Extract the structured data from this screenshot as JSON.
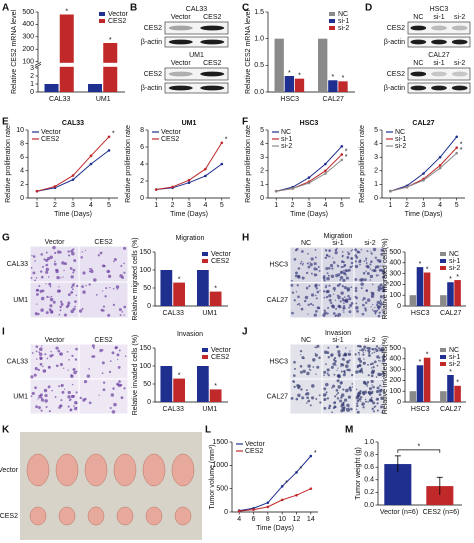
{
  "panel_labels": [
    "A",
    "B",
    "C",
    "D",
    "E",
    "F",
    "G",
    "H",
    "I",
    "J",
    "K",
    "L",
    "M"
  ],
  "blots": {
    "B": [
      {
        "title": "CAL33",
        "lanes": [
          "Vector",
          "CES2"
        ],
        "rows": [
          "CES2",
          "β-actin"
        ]
      },
      {
        "title": "UM1",
        "lanes": [
          "Vector",
          "CES2"
        ],
        "rows": [
          "CES2",
          "β-actin"
        ]
      }
    ],
    "D": [
      {
        "title": "HSC3",
        "lanes": [
          "NC",
          "si-1",
          "si-2"
        ],
        "rows": [
          "CES2",
          "β-actin"
        ]
      },
      {
        "title": "CAL27",
        "lanes": [
          "NC",
          "si-1",
          "si-2"
        ],
        "rows": [
          "CES2",
          "β-actin"
        ]
      }
    ]
  },
  "micrographs": {
    "G": {
      "title": "Migration",
      "columns": [
        "Vector",
        "CES2"
      ],
      "rows": [
        "CAL33",
        "UM1"
      ]
    },
    "H": {
      "title": "Migration",
      "columns": [
        "NC",
        "si-1",
        "si-2"
      ],
      "rows": [
        "HSC3",
        "CAL27"
      ]
    },
    "I": {
      "title": "Invasion",
      "columns": [
        "Vector",
        "CES2"
      ],
      "rows": [
        "CAL33",
        "UM1"
      ]
    },
    "J": {
      "title": "Invasion",
      "columns": [
        "NC",
        "si-1",
        "si-2"
      ],
      "rows": [
        "HSC3",
        "CAL27"
      ]
    }
  },
  "tumors": {
    "rows": [
      "Vector",
      "CES2"
    ]
  },
  "chart_data": [
    {
      "type": "bar",
      "ylabel": "Relative CES2 mRNA level",
      "categories": [
        "CAL33",
        "UM1"
      ],
      "series": [
        {
          "name": "Vector",
          "color": "#1f2f8f",
          "values": [
            1,
            1
          ]
        },
        {
          "name": "CES2",
          "color": "#c0282a",
          "values": [
            480,
            250
          ],
          "annotations": [
            "*",
            "*"
          ]
        }
      ],
      "ylim": [
        0,
        500
      ],
      "ybreak": [
        3,
        100
      ],
      "yticks": [
        0,
        1,
        2,
        3,
        100,
        200,
        300,
        400,
        500
      ],
      "legend": "upper right"
    },
    {
      "type": "bar",
      "ylabel": "Relative CES2 mRNA level",
      "categories": [
        "HSC3",
        "CAL27"
      ],
      "series": [
        {
          "name": "NC",
          "color": "#8a8a8a",
          "values": [
            1.0,
            1.0
          ]
        },
        {
          "name": "si-1",
          "color": "#1f2f8f",
          "values": [
            0.3,
            0.22
          ],
          "annotations": [
            "*",
            "*"
          ]
        },
        {
          "name": "si-2",
          "color": "#c0282a",
          "values": [
            0.25,
            0.2
          ],
          "annotations": [
            "*",
            "*"
          ]
        }
      ],
      "ylim": [
        0,
        1.5
      ],
      "yticks": [
        {
          "value": 0,
          "label": "0.0"
        },
        {
          "value": 0.5,
          "label": "0.5"
        },
        {
          "value": 1,
          "label": "1.0"
        },
        {
          "value": 1.5,
          "label": "1.5"
        }
      ],
      "legend": "upper right"
    },
    {
      "type": "line",
      "title": "CAL33",
      "xlabel": "Time (Days)",
      "ylabel": "Relative proliferation rate",
      "x": [
        1,
        2,
        3,
        4,
        5
      ],
      "xlim": [
        0.5,
        5.5
      ],
      "xticks": [
        1,
        2,
        3,
        4,
        5
      ],
      "ylim": [
        0,
        10
      ],
      "yticks": [
        0,
        2,
        4,
        6,
        8,
        10
      ],
      "series": [
        {
          "name": "Vector",
          "color": "#1f2f8f",
          "values": [
            1,
            1.5,
            2.7,
            5.0,
            7.0
          ]
        },
        {
          "name": "CES2",
          "color": "#c0282a",
          "values": [
            1,
            1.7,
            3.3,
            6.2,
            9.0
          ],
          "annotations": [
            null,
            null,
            null,
            null,
            "*"
          ]
        }
      ],
      "legend": "upper left"
    },
    {
      "type": "line",
      "title": "UM1",
      "xlabel": "Time (Days)",
      "ylabel": "Relative proliferation rate",
      "x": [
        1,
        2,
        3,
        4,
        5
      ],
      "xlim": [
        0.5,
        5.5
      ],
      "xticks": [
        1,
        2,
        3,
        4,
        5
      ],
      "ylim": [
        0,
        8
      ],
      "yticks": [
        0,
        2,
        4,
        6,
        8
      ],
      "series": [
        {
          "name": "Vector",
          "color": "#1f2f8f",
          "values": [
            1,
            1.2,
            1.8,
            2.6,
            4.0
          ]
        },
        {
          "name": "CES2",
          "color": "#c0282a",
          "values": [
            1,
            1.3,
            2.1,
            3.4,
            6.5
          ],
          "annotations": [
            null,
            null,
            null,
            null,
            "*"
          ]
        }
      ],
      "legend": "upper left"
    },
    {
      "type": "line",
      "title": "HSC3",
      "xlabel": "Time (Days)",
      "ylabel": "Relative proliferation rate",
      "x": [
        1,
        2,
        3,
        4,
        5
      ],
      "xlim": [
        0.5,
        5.5
      ],
      "xticks": [
        1,
        2,
        3,
        4,
        5
      ],
      "ylim": [
        0,
        5
      ],
      "yticks": [
        0,
        1,
        2,
        3,
        4,
        5
      ],
      "series": [
        {
          "name": "NC",
          "color": "#1f2f8f",
          "values": [
            0.5,
            0.8,
            1.5,
            2.5,
            3.8
          ]
        },
        {
          "name": "si-1",
          "color": "#c0282a",
          "values": [
            0.5,
            0.7,
            1.2,
            2.0,
            3.2
          ],
          "annotations": [
            null,
            null,
            null,
            null,
            "*"
          ]
        },
        {
          "name": "si-2",
          "color": "#8a8a8a",
          "values": [
            0.5,
            0.7,
            1.1,
            1.8,
            2.8
          ],
          "annotations": [
            null,
            null,
            null,
            null,
            "*"
          ]
        }
      ],
      "legend": "upper left"
    },
    {
      "type": "line",
      "title": "CAL27",
      "xlabel": "Time (Days)",
      "ylabel": "Relative proliferation rate",
      "x": [
        1,
        2,
        3,
        4,
        5
      ],
      "xlim": [
        0.5,
        5.5
      ],
      "xticks": [
        1,
        2,
        3,
        4,
        5
      ],
      "ylim": [
        0,
        5
      ],
      "yticks": [
        0,
        1,
        2,
        3,
        4,
        5
      ],
      "series": [
        {
          "name": "NC",
          "color": "#1f2f8f",
          "values": [
            0.5,
            0.9,
            1.8,
            3.0,
            4.5
          ]
        },
        {
          "name": "si-1",
          "color": "#c0282a",
          "values": [
            0.5,
            0.8,
            1.4,
            2.4,
            3.7
          ],
          "annotations": [
            null,
            null,
            null,
            null,
            "*"
          ]
        },
        {
          "name": "si-2",
          "color": "#8a8a8a",
          "values": [
            0.5,
            0.8,
            1.3,
            2.2,
            3.3
          ],
          "annotations": [
            null,
            null,
            null,
            null,
            "*"
          ]
        }
      ],
      "legend": "upper left"
    },
    {
      "type": "bar",
      "ylabel": "Relative migrated cells (%)",
      "categories": [
        "CAL33",
        "UM1"
      ],
      "series": [
        {
          "name": "Vector",
          "color": "#1f2f8f",
          "values": [
            100,
            100
          ]
        },
        {
          "name": "CES2",
          "color": "#c0282a",
          "values": [
            65,
            40
          ],
          "annotations": [
            "*",
            "*"
          ]
        }
      ],
      "ylim": [
        0,
        150
      ],
      "yticks": [
        0,
        50,
        100,
        150
      ],
      "legend": "upper right"
    },
    {
      "type": "bar",
      "ylabel": "Relative migrated cells(%)",
      "categories": [
        "HSC3",
        "CAL27"
      ],
      "series": [
        {
          "name": "NC",
          "color": "#8a8a8a",
          "values": [
            100,
            100
          ]
        },
        {
          "name": "si-1",
          "color": "#1f2f8f",
          "values": [
            360,
            220
          ],
          "annotations": [
            "*",
            "*"
          ]
        },
        {
          "name": "si-2",
          "color": "#c0282a",
          "values": [
            310,
            240
          ],
          "annotations": [
            "*",
            "*"
          ]
        }
      ],
      "ylim": [
        0,
        500
      ],
      "yticks": [
        0,
        100,
        200,
        300,
        400,
        500
      ],
      "legend": "upper right"
    },
    {
      "type": "bar",
      "ylabel": "Relative invaded cells (%)",
      "categories": [
        "CAL33",
        "UM1"
      ],
      "series": [
        {
          "name": "Vector",
          "color": "#1f2f8f",
          "values": [
            100,
            100
          ]
        },
        {
          "name": "CES2",
          "color": "#c0282a",
          "values": [
            65,
            35
          ],
          "annotations": [
            "*",
            "*"
          ]
        }
      ],
      "ylim": [
        0,
        150
      ],
      "yticks": [
        0,
        50,
        100,
        150
      ],
      "legend": "upper right"
    },
    {
      "type": "bar",
      "ylabel": "Relative invaded cells(%)",
      "categories": [
        "HSC3",
        "CAL27"
      ],
      "series": [
        {
          "name": "NC",
          "color": "#8a8a8a",
          "values": [
            100,
            100
          ]
        },
        {
          "name": "si-1",
          "color": "#1f2f8f",
          "values": [
            340,
            250
          ],
          "annotations": [
            "*",
            "*"
          ]
        },
        {
          "name": "si-2",
          "color": "#c0282a",
          "values": [
            410,
            150
          ],
          "annotations": [
            "*",
            "*"
          ]
        }
      ],
      "ylim": [
        0,
        500
      ],
      "yticks": [
        0,
        100,
        200,
        300,
        400,
        500
      ],
      "legend": "upper right"
    },
    {
      "type": "line",
      "xlabel": "Time (Days)",
      "ylabel": "Tumor volume (mm³)",
      "x": [
        4,
        6,
        8,
        10,
        12,
        14
      ],
      "xlim": [
        3,
        15
      ],
      "xticks": [
        4,
        6,
        8,
        10,
        12,
        14
      ],
      "ylim": [
        0,
        1500
      ],
      "yticks": [
        0,
        500,
        1000,
        1500
      ],
      "series": [
        {
          "name": "Vector",
          "color": "#1f2f8f",
          "values": [
            30,
            80,
            200,
            550,
            850,
            1200
          ],
          "annotations": [
            null,
            null,
            null,
            "*",
            "*",
            "*"
          ]
        },
        {
          "name": "CES2",
          "color": "#c0282a",
          "values": [
            20,
            50,
            110,
            260,
            360,
            500
          ]
        }
      ],
      "legend": "upper left"
    },
    {
      "type": "bar",
      "ylabel": "Tumor weight (g)",
      "categories": [
        "Vector (n=6)",
        "CES2 (n=6)"
      ],
      "values": [
        0.65,
        0.3
      ],
      "errors": [
        0.13,
        0.14
      ],
      "colors": [
        "#1f2f8f",
        "#c0282a"
      ],
      "ylim": [
        0,
        1
      ],
      "yticks": [
        {
          "value": 0,
          "label": "0.0"
        },
        {
          "value": 0.2,
          "label": "0.2"
        },
        {
          "value": 0.4,
          "label": "0.4"
        },
        {
          "value": 0.6,
          "label": "0.6"
        },
        {
          "value": 0.8,
          "label": "0.8"
        },
        {
          "value": 1,
          "label": "1.0"
        }
      ],
      "bracket": "*"
    }
  ]
}
